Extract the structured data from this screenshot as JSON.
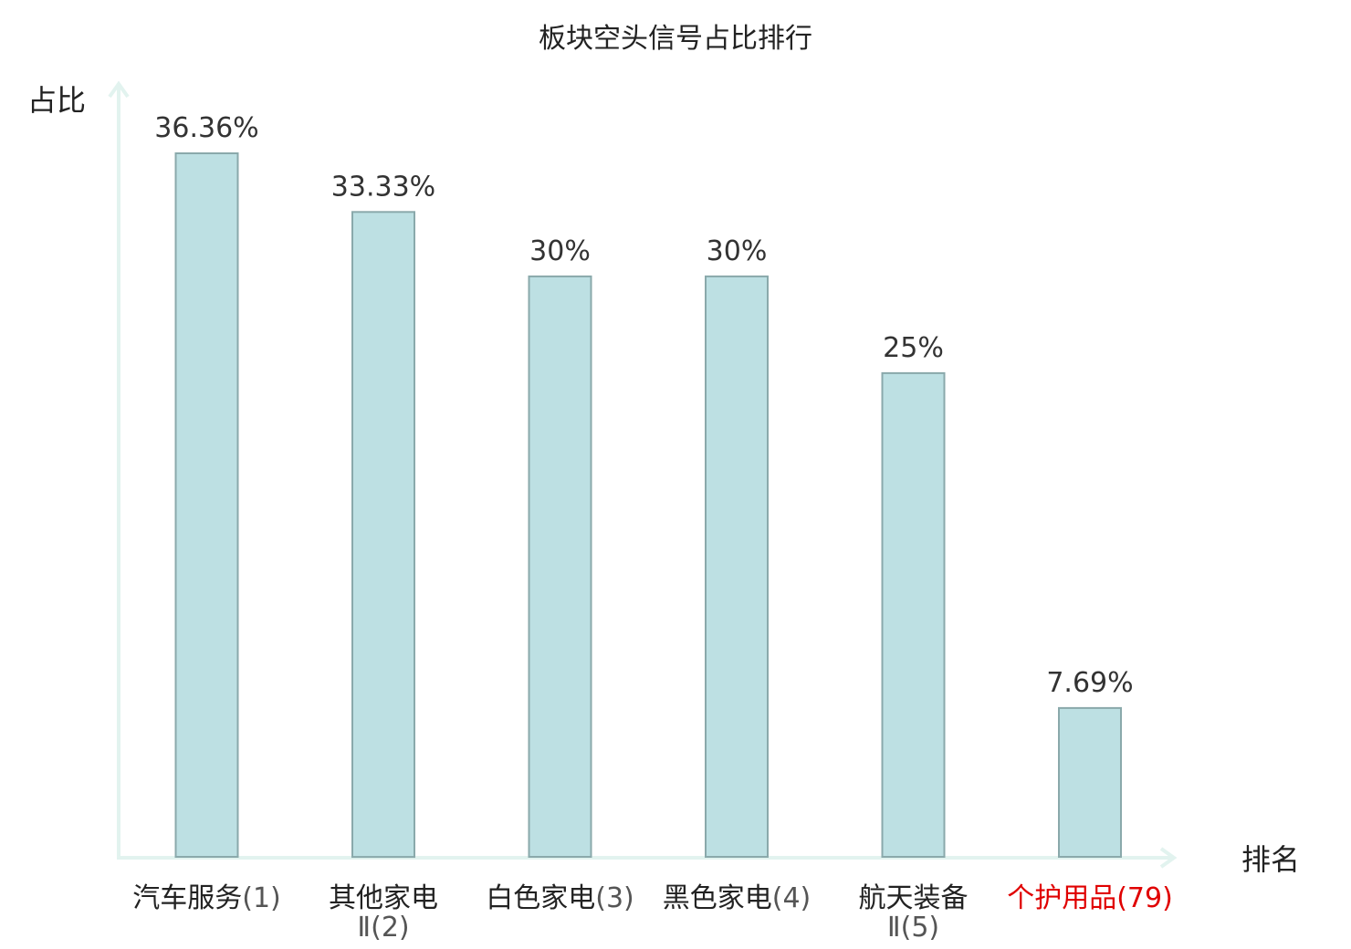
{
  "chart_data": {
    "type": "bar",
    "title": "板块空头信号占比排行",
    "ylabel": "占比",
    "xlabel": "排名",
    "ylim": [
      0,
      40
    ],
    "grid": false,
    "categories": [
      {
        "name": "汽车服务",
        "rank": "(1)"
      },
      {
        "name": "其他家电",
        "name_line2": "Ⅱ",
        "rank": "(2)"
      },
      {
        "name": "白色家电",
        "rank": "(3)"
      },
      {
        "name": "黑色家电",
        "rank": "(4)"
      },
      {
        "name": "航天装备",
        "name_line2": "Ⅱ",
        "rank": "(5)"
      },
      {
        "name": "个护用品",
        "rank": "(79)",
        "highlight": true
      }
    ],
    "values": [
      36.36,
      33.33,
      30,
      30,
      25,
      7.69
    ],
    "value_labels": [
      "36.36%",
      "33.33%",
      "30%",
      "30%",
      "25%",
      "7.69%"
    ],
    "colors": {
      "bar_fill": "#bde0e3",
      "bar_stroke": "#8aa9ab",
      "axis": "#e2f3ef",
      "highlight_label": "#e00000"
    }
  }
}
